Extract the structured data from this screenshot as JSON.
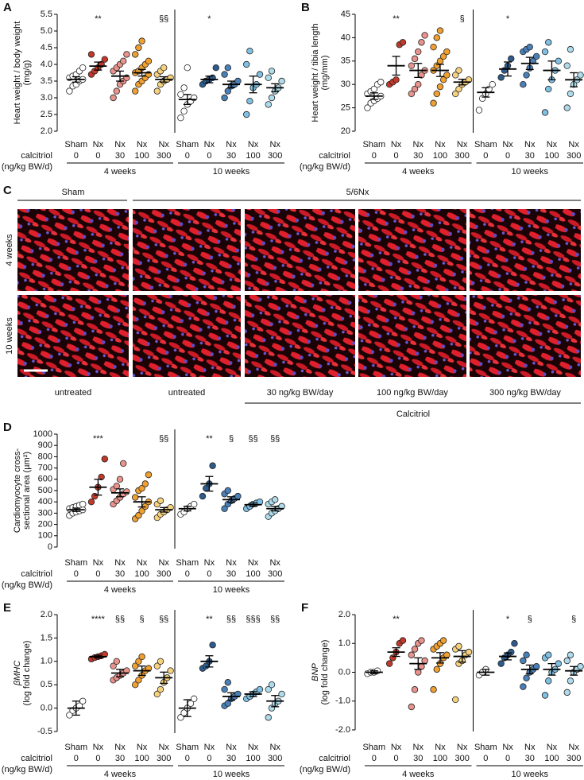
{
  "chart_data": [
    {
      "label": "A",
      "type": "dot",
      "ylabel": [
        "Heart weight / body weight",
        "(mg/g)"
      ],
      "ylabel_italic_first": false,
      "ylim": [
        2.0,
        5.5
      ],
      "yticks": [
        {
          "value": 2.0,
          "label": "2.0"
        },
        2.5,
        {
          "value": 3.0,
          "label": "3.0"
        },
        3.5,
        {
          "value": 4.0,
          "label": "4.0"
        },
        4.5,
        {
          "value": 5.0,
          "label": "5.0"
        },
        5.5
      ],
      "row_label": [
        "calcitriol",
        "(ng/kg BW/d)"
      ],
      "weeks": [
        "4 weeks",
        "10 weeks"
      ],
      "categories": [
        "Sham",
        "Nx",
        "Nx",
        "Nx",
        "Nx",
        "Sham",
        "Nx",
        "Nx",
        "Nx",
        "Nx"
      ],
      "doses": [
        0,
        0,
        30,
        100,
        300,
        0,
        0,
        30,
        100,
        300
      ],
      "colors": [
        "#ffffff",
        "#c0392b",
        "#e8938c",
        "#f0a030",
        "#f6d27e",
        "#ffffff",
        "#2d5b8c",
        "#4a80b8",
        "#80c0e2",
        "#aedcec"
      ],
      "annotations": [
        null,
        "**",
        null,
        null,
        "§§",
        null,
        "*",
        null,
        null,
        null
      ],
      "means": [
        3.55,
        3.95,
        3.65,
        3.75,
        3.55,
        2.95,
        3.55,
        3.4,
        3.4,
        3.3
      ],
      "sems": [
        0.08,
        0.12,
        0.15,
        0.1,
        0.08,
        0.15,
        0.1,
        0.1,
        0.25,
        0.12
      ],
      "points": [
        [
          3.2,
          3.35,
          3.4,
          3.5,
          3.55,
          3.6,
          3.65,
          3.7,
          3.8,
          3.9
        ],
        [
          3.7,
          3.8,
          3.9,
          4.0,
          4.15,
          4.3
        ],
        [
          3.0,
          3.2,
          3.4,
          3.5,
          3.6,
          3.8,
          3.9,
          4.0,
          4.1,
          4.3
        ],
        [
          3.2,
          3.4,
          3.5,
          3.6,
          3.7,
          3.75,
          3.8,
          3.9,
          4.0,
          4.1,
          4.3,
          4.5,
          4.7
        ],
        [
          3.2,
          3.4,
          3.5,
          3.55,
          3.6,
          3.7,
          3.8,
          3.9
        ],
        [
          2.4,
          2.6,
          2.8,
          2.9,
          3.0,
          3.1,
          3.3,
          3.9
        ],
        [
          3.4,
          3.5,
          3.55,
          3.6,
          3.9
        ],
        [
          3.0,
          3.2,
          3.35,
          3.4,
          3.5,
          3.7,
          3.9
        ],
        [
          2.5,
          2.9,
          3.3,
          3.4,
          3.7,
          4.0,
          4.4
        ],
        [
          2.8,
          3.0,
          3.2,
          3.3,
          3.5,
          3.6,
          3.8
        ]
      ]
    },
    {
      "label": "B",
      "type": "dot",
      "ylabel": [
        "Heart weight / tibia length",
        "(mg/mm)"
      ],
      "ylabel_italic_first": false,
      "ylim": [
        20,
        45
      ],
      "yticks": [
        20,
        25,
        30,
        35,
        40,
        45
      ],
      "row_label": [
        "calcitriol",
        "(ng/kg BW/d)"
      ],
      "weeks": [
        "4 weeks",
        "10 weeks"
      ],
      "categories": [
        "Sham",
        "Nx",
        "Nx",
        "Nx",
        "Nx",
        "Sham",
        "Nx",
        "Nx",
        "Nx",
        "Nx"
      ],
      "doses": [
        0,
        0,
        30,
        100,
        300,
        0,
        0,
        30,
        100,
        300
      ],
      "colors": [
        "#ffffff",
        "#c0392b",
        "#e8938c",
        "#f0a030",
        "#f6d27e",
        "#ffffff",
        "#2d5b8c",
        "#4a80b8",
        "#80c0e2",
        "#aedcec"
      ],
      "annotations": [
        null,
        "**",
        null,
        null,
        "§",
        null,
        "*",
        null,
        null,
        null
      ],
      "means": [
        27.5,
        34,
        33,
        33,
        30.5,
        28.3,
        33.3,
        34.5,
        33,
        31
      ],
      "sems": [
        0.7,
        2,
        1.5,
        1.3,
        0.6,
        1,
        1.5,
        1.3,
        2,
        1.5
      ],
      "points": [
        [
          25,
          26,
          26.5,
          27,
          27.5,
          28,
          28.5,
          29,
          30,
          30.5
        ],
        [
          30,
          30.5,
          31,
          38.5,
          39
        ],
        [
          28,
          29,
          30,
          32,
          33,
          34,
          35.5,
          37,
          39,
          40.5
        ],
        [
          26,
          28,
          29.5,
          31,
          32,
          33,
          34,
          35,
          36,
          37,
          38,
          40,
          41.5
        ],
        [
          28,
          29,
          30,
          30.5,
          31,
          32,
          33
        ],
        [
          24.5,
          27,
          28,
          29,
          30
        ],
        [
          31.5,
          33,
          34,
          35.5
        ],
        [
          30,
          32,
          33.5,
          35,
          36,
          37,
          37.5,
          38
        ],
        [
          24,
          29,
          31,
          33,
          35,
          37,
          39
        ],
        [
          25,
          28,
          30,
          31,
          32,
          34,
          37.5
        ]
      ]
    },
    {
      "label": "D",
      "type": "dot",
      "ylabel": [
        "Cardiomyocyte cross-",
        "sectional area (µm²)"
      ],
      "ylabel_italic_first": false,
      "ylim": [
        0,
        1000
      ],
      "yticks": [
        0,
        100,
        200,
        300,
        400,
        500,
        600,
        700,
        800,
        900,
        1000
      ],
      "row_label": [
        "calcitriol",
        "(ng/kg BW/d)"
      ],
      "weeks": [
        "4 weeks",
        "10 weeks"
      ],
      "categories": [
        "Sham",
        "Nx",
        "Nx",
        "Nx",
        "Nx",
        "Sham",
        "Nx",
        "Nx",
        "Nx",
        "Nx"
      ],
      "doses": [
        0,
        0,
        30,
        100,
        300,
        0,
        0,
        30,
        100,
        300
      ],
      "colors": [
        "#ffffff",
        "#c0392b",
        "#e8938c",
        "#f0a030",
        "#f6d27e",
        "#ffffff",
        "#2d5b8c",
        "#4a80b8",
        "#80c0e2",
        "#aedcec"
      ],
      "annotations": [
        null,
        "***",
        null,
        null,
        "§§",
        null,
        "**",
        "§",
        "§§",
        "§§"
      ],
      "means": [
        330,
        530,
        480,
        400,
        330,
        340,
        560,
        420,
        375,
        340
      ],
      "sems": [
        15,
        70,
        35,
        45,
        20,
        20,
        65,
        25,
        15,
        20
      ],
      "points": [
        [
          280,
          300,
          310,
          320,
          330,
          340,
          350,
          360,
          370,
          380
        ],
        [
          400,
          450,
          530,
          620,
          780
        ],
        [
          380,
          410,
          440,
          470,
          490,
          510,
          540,
          600,
          740
        ],
        [
          250,
          280,
          320,
          360,
          400,
          440,
          500,
          520,
          560,
          640
        ],
        [
          260,
          290,
          310,
          330,
          350,
          380,
          410
        ],
        [
          290,
          310,
          340,
          360,
          380
        ],
        [
          450,
          520,
          560,
          720
        ],
        [
          340,
          380,
          410,
          430,
          450,
          470,
          500
        ],
        [
          340,
          360,
          380,
          390,
          400
        ],
        [
          270,
          300,
          320,
          340,
          360,
          380,
          400,
          420
        ]
      ]
    },
    {
      "label": "E",
      "type": "dot",
      "ylabel": [
        "βMHC",
        "(log fold change)"
      ],
      "ylabel_italic_first": true,
      "ylim": [
        -0.5,
        2.0
      ],
      "yticks": [
        -0.5,
        {
          "value": 0,
          "label": "0.0"
        },
        0.5,
        {
          "value": 1,
          "label": "1.0"
        },
        1.5,
        {
          "value": 2,
          "label": "2.0"
        }
      ],
      "row_label": [
        "calcitriol",
        "(ng/kg BW/d)"
      ],
      "weeks": [
        "4 weeks",
        "10 weeks"
      ],
      "categories": [
        "Sham",
        "Nx",
        "Nx",
        "Nx",
        "Nx",
        "Sham",
        "Nx",
        "Nx",
        "Nx",
        "Nx"
      ],
      "doses": [
        0,
        0,
        30,
        100,
        300,
        0,
        0,
        30,
        100,
        300
      ],
      "colors": [
        "#ffffff",
        "#c0392b",
        "#e8938c",
        "#f0a030",
        "#f6d27e",
        "#ffffff",
        "#2d5b8c",
        "#4a80b8",
        "#80c0e2",
        "#aedcec"
      ],
      "annotations": [
        null,
        "****",
        "§§",
        "§",
        "§§",
        null,
        "**",
        "§§",
        "§§§",
        "§§"
      ],
      "means": [
        0,
        1.1,
        0.75,
        0.8,
        0.65,
        0,
        1.0,
        0.25,
        0.3,
        0.15
      ],
      "sems": [
        0.15,
        0.03,
        0.08,
        0.1,
        0.12,
        0.18,
        0.12,
        0.08,
        0.05,
        0.12
      ],
      "points": [
        [
          -0.15,
          -0.05,
          0,
          0.05,
          0.15
        ],
        [
          1.05,
          1.08,
          1.1,
          1.12,
          1.15
        ],
        [
          0.6,
          0.65,
          0.7,
          0.75,
          0.8,
          0.9,
          1.0
        ],
        [
          0.5,
          0.6,
          0.7,
          0.8,
          0.85,
          0.9,
          1.0,
          1.1
        ],
        [
          0.3,
          0.4,
          0.55,
          0.65,
          0.8,
          0.9,
          1.0
        ],
        [
          -0.2,
          -0.1,
          0,
          0.1,
          0.2
        ],
        [
          0.85,
          0.9,
          1.0,
          1.35
        ],
        [
          0.05,
          0.1,
          0.2,
          0.25,
          0.3,
          0.4,
          0.55
        ],
        [
          0.2,
          0.25,
          0.3,
          0.35,
          0.4
        ],
        [
          -0.2,
          0,
          0.1,
          0.15,
          0.3,
          0.4,
          0.5
        ]
      ]
    },
    {
      "label": "F",
      "type": "dot",
      "ylabel": [
        "BNP",
        "(log fold change)"
      ],
      "ylabel_italic_first": true,
      "ylim": [
        -2,
        2
      ],
      "yticks": [
        {
          "value": -2,
          "label": "-2.0"
        },
        {
          "value": -1,
          "label": "-1.0"
        },
        {
          "value": 0,
          "label": "0.0"
        },
        {
          "value": 1,
          "label": "1.0"
        },
        {
          "value": 2,
          "label": "2.0"
        }
      ],
      "row_label": [
        "calcitriol",
        "(ng/kg BW/d)"
      ],
      "weeks": [
        "4 weeks",
        "10 weeks"
      ],
      "categories": [
        "Sham",
        "Nx",
        "Nx",
        "Nx",
        "Nx",
        "Sham",
        "Nx",
        "Nx",
        "Nx",
        "Nx"
      ],
      "doses": [
        0,
        0,
        30,
        100,
        300,
        0,
        0,
        30,
        100,
        300
      ],
      "colors": [
        "#ffffff",
        "#c0392b",
        "#e8938c",
        "#f0a030",
        "#f6d27e",
        "#ffffff",
        "#2d5b8c",
        "#4a80b8",
        "#80c0e2",
        "#aedcec"
      ],
      "annotations": [
        null,
        "**",
        null,
        null,
        null,
        null,
        "*",
        "§",
        null,
        "§"
      ],
      "means": [
        0,
        0.7,
        0.3,
        0.5,
        0.55,
        0,
        0.55,
        0.1,
        0.1,
        0.05
      ],
      "sems": [
        0.05,
        0.15,
        0.2,
        0.18,
        0.2,
        0.1,
        0.12,
        0.15,
        0.2,
        0.15
      ],
      "points": [
        [
          -0.05,
          0,
          0,
          0.05
        ],
        [
          0.3,
          0.5,
          0.7,
          1.0,
          1.1
        ],
        [
          -1.2,
          -0.6,
          0,
          0.2,
          0.4,
          0.6,
          0.8,
          1.0,
          1.1
        ],
        [
          -0.6,
          0.1,
          0.3,
          0.5,
          0.6,
          0.8,
          0.9,
          1.0,
          1.1
        ],
        [
          -0.95,
          0.3,
          0.4,
          0.6,
          0.7,
          0.8,
          0.9
        ],
        [
          -0.1,
          0,
          0.1
        ],
        [
          0.3,
          0.5,
          0.6,
          0.7,
          1.0
        ],
        [
          -0.5,
          -0.2,
          0,
          0.1,
          0.2,
          0.4,
          0.6
        ],
        [
          -0.8,
          -0.3,
          0,
          0.1,
          0.3,
          0.5,
          0.6
        ],
        [
          -0.7,
          -0.3,
          0,
          0.1,
          0.2,
          0.4,
          0.6
        ]
      ]
    }
  ],
  "micrograph": {
    "label": "C",
    "groups": [
      "Sham",
      "5/6Nx"
    ],
    "rows": [
      "4 weeks",
      "10 weeks"
    ],
    "columns": [
      "untreated",
      "untreated",
      "30 ng/kg BW/day",
      "100 ng/kg BW/day",
      "300 ng/kg BW/day"
    ],
    "treatment": "Calcitriol"
  }
}
